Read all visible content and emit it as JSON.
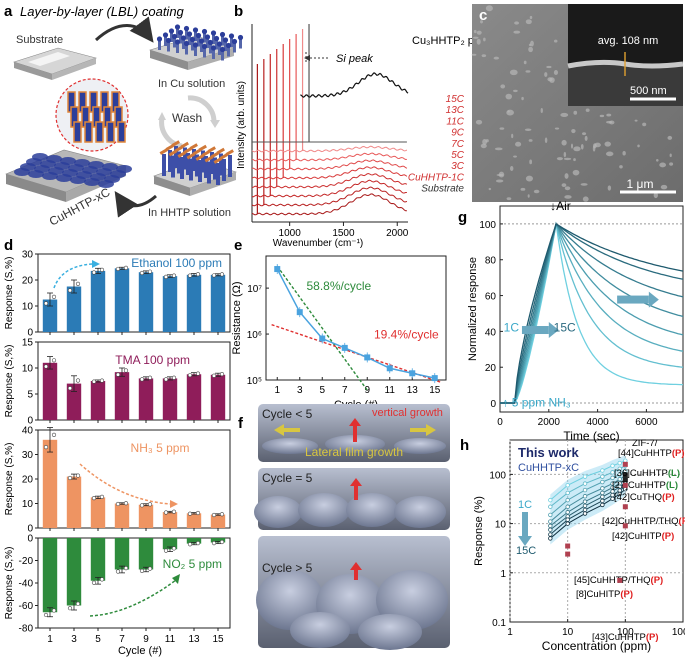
{
  "panel_letters": {
    "a": "a",
    "b": "b",
    "c": "c",
    "d": "d",
    "e": "e",
    "f": "f",
    "g": "g",
    "h": "h"
  },
  "colors": {
    "ethanol": "#2b7bb6",
    "tma": "#8f1d5a",
    "nh3": "#ee9462",
    "no2": "#2e8b3c",
    "e_blue": "#4aa3df",
    "e_red": "#e03030",
    "e_green": "#2e8b3c",
    "g_light": "#6fd0e0",
    "g_dark": "#1e5a6e",
    "h_red": "#e02020",
    "h_green": "#2a8a3a"
  },
  "panel_a": {
    "title": "Layer-by-layer (LBL) coating",
    "substrate": "Substrate",
    "in_cu": "In Cu solution",
    "wash": "Wash",
    "in_hhtp": "In HHTP solution",
    "product": "CuHHTP-xC"
  },
  "panel_b": {
    "ylabel": "Intensity (arb. units)",
    "xlabel": "Wavenumber (cm⁻¹)",
    "xticks": [
      "1000",
      "1500",
      "2000"
    ],
    "si_peak": "Si peak",
    "powder_label": "Cu₃HHTP₂ powders",
    "traces": [
      "15C",
      "13C",
      "11C",
      "9C",
      "7C",
      "5C",
      "3C",
      "CuHHTP-1C",
      "Substrate"
    ]
  },
  "panel_c": {
    "inset_label": "avg. 108 nm",
    "inset_scale": "500 nm",
    "scale": "1 μm"
  },
  "chart_data": [
    {
      "type": "bar",
      "panel": "d",
      "xlabel": "Cycle (#)",
      "ylabel": "Response (S,%)",
      "categories": [
        "1",
        "3",
        "5",
        "7",
        "9",
        "11",
        "13",
        "15"
      ],
      "series": [
        {
          "name": "Ethanol 100 ppm",
          "values": [
            12.5,
            17.5,
            23.5,
            24.5,
            23.0,
            21.5,
            22.0,
            22.0
          ],
          "errors": [
            2.5,
            2.5,
            1.0,
            0.4,
            0.5,
            0.5,
            0.5,
            0.4
          ],
          "ylim": [
            0,
            30
          ],
          "yticks": [
            0,
            10,
            20,
            30
          ]
        },
        {
          "name": "TMA 100 ppm",
          "values": [
            11.0,
            7.0,
            7.5,
            9.2,
            8.0,
            8.0,
            8.8,
            8.7
          ],
          "errors": [
            1.2,
            1.5,
            0.2,
            0.8,
            0.3,
            0.3,
            0.3,
            0.3
          ],
          "ylim": [
            0,
            15
          ],
          "yticks": [
            0,
            5,
            10,
            15
          ]
        },
        {
          "name": "NH₃ 5 ppm",
          "values": [
            36.0,
            21.0,
            12.5,
            10.0,
            9.5,
            6.5,
            6.0,
            5.5
          ],
          "errors": [
            5.0,
            1.0,
            0.5,
            0.3,
            0.4,
            0.3,
            0.3,
            0.3
          ],
          "ylim": [
            0,
            40
          ],
          "yticks": [
            0,
            10,
            20,
            30,
            40
          ]
        },
        {
          "name": "NO₂ 5 ppm",
          "values": [
            -66,
            -60,
            -38,
            -28,
            -28,
            -10,
            -5,
            -4
          ],
          "errors": [
            4,
            4,
            3,
            3,
            2,
            2,
            1,
            1
          ],
          "ylim": [
            -80,
            0
          ],
          "yticks": [
            -80,
            -60,
            -40,
            -20,
            0
          ]
        }
      ]
    },
    {
      "type": "line",
      "panel": "e",
      "xlabel": "Cycle (#)",
      "ylabel": "Resistance (Ω)",
      "xlim": [
        0,
        16
      ],
      "ylim": [
        100000,
        50000000
      ],
      "log_y": true,
      "xticks": [
        1,
        3,
        5,
        7,
        9,
        11,
        13,
        15
      ],
      "yticks": [
        {
          "v": 100000,
          "label": "10⁵"
        },
        {
          "v": 1000000,
          "label": "10⁶"
        },
        {
          "v": 10000000,
          "label": "10⁷"
        }
      ],
      "x": [
        1,
        3,
        5,
        7,
        9,
        11,
        13,
        15
      ],
      "y": [
        26000000,
        3000000,
        800000,
        500000,
        310000,
        180000,
        140000,
        110000
      ],
      "annotations": [
        "58.8%/cycle",
        "19.4%/cycle"
      ]
    },
    {
      "type": "line",
      "panel": "g",
      "xlabel": "Time (sec)",
      "ylabel": "Normalized response",
      "xlim": [
        0,
        7500
      ],
      "ylim": [
        -5,
        110
      ],
      "xticks": [
        0,
        2000,
        4000,
        6000
      ],
      "yticks": [
        0,
        20,
        40,
        60,
        80,
        100
      ],
      "peak_time": 2300,
      "final_levels": [
        10,
        18,
        24,
        30,
        38,
        48,
        58,
        62
      ],
      "annotations": {
        "air": "↓Air",
        "start": "1C",
        "end": "15C",
        "gas": "↑ 5 ppm NH₃"
      }
    },
    {
      "type": "scatter",
      "panel": "h",
      "xlabel": "Concentration (ppm)",
      "ylabel": "Response (%)",
      "log_x": true,
      "log_y": true,
      "xlim": [
        1,
        1000
      ],
      "ylim": [
        0.1,
        500
      ],
      "xticks": [
        {
          "v": 1,
          "label": "1"
        },
        {
          "v": 10,
          "label": "10"
        },
        {
          "v": 100,
          "label": "100"
        },
        {
          "v": 1000,
          "label": "1000"
        }
      ],
      "yticks": [
        {
          "v": 0.1,
          "label": "0.1"
        },
        {
          "v": 1,
          "label": "1"
        },
        {
          "v": 10,
          "label": "10"
        },
        {
          "v": 100,
          "label": "100"
        }
      ],
      "this_work": {
        "title": "This work",
        "subtitle": "CuHHTP-xC",
        "start": "1C",
        "end": "15C",
        "x": [
          5,
          10,
          20,
          40,
          60,
          80,
          100
        ],
        "series": [
          [
            30,
            60,
            90,
            120,
            150,
            170,
            190
          ],
          [
            22,
            42,
            65,
            90,
            110,
            130,
            150
          ],
          [
            15,
            30,
            48,
            70,
            85,
            100,
            118
          ],
          [
            11,
            22,
            36,
            52,
            65,
            80,
            95
          ],
          [
            9,
            17,
            28,
            42,
            54,
            66,
            80
          ],
          [
            7.5,
            14,
            23,
            35,
            45,
            56,
            68
          ],
          [
            6,
            12,
            19,
            29,
            38,
            47,
            58
          ],
          [
            5,
            10,
            16,
            24,
            32,
            40,
            50
          ]
        ]
      },
      "literature": [
        {
          "ref": "[44]",
          "name": "ZIF-7/\nCuHHTP",
          "tag": "P",
          "x": 100,
          "y": 160
        },
        {
          "ref": "[36]",
          "name": "CuHHTP",
          "tag": "L",
          "x": 100,
          "y": 98
        },
        {
          "ref": "[27]",
          "name": "CuHHTP",
          "tag": "L",
          "x": 100,
          "y": 78
        },
        {
          "ref": "[42]",
          "name": "CuTHQ",
          "tag": "P",
          "x": 100,
          "y": 60
        },
        {
          "ref": "[42]",
          "name": "CuHHTP/THQ",
          "tag": "P",
          "x": 100,
          "y": 22
        },
        {
          "ref": "[42]",
          "name": "CuHITP",
          "tag": "P",
          "x": 100,
          "y": 9
        },
        {
          "ref": "[45]",
          "name": "CuHHTP/THQ",
          "tag": "P",
          "x": 10,
          "y": 3.5
        },
        {
          "ref": "[8]",
          "name": "CuHITP",
          "tag": "P",
          "x": 10,
          "y": 2.4
        },
        {
          "ref": "[43]",
          "name": "CuHHTP",
          "tag": "P",
          "x": 80,
          "y": 0.7
        }
      ]
    }
  ],
  "panel_f": {
    "lt5": "Cycle < 5",
    "vertical": "vertical growth",
    "lateral": "Lateral film growth",
    "eq5": "Cycle = 5",
    "gt5": "Cycle > 5"
  }
}
